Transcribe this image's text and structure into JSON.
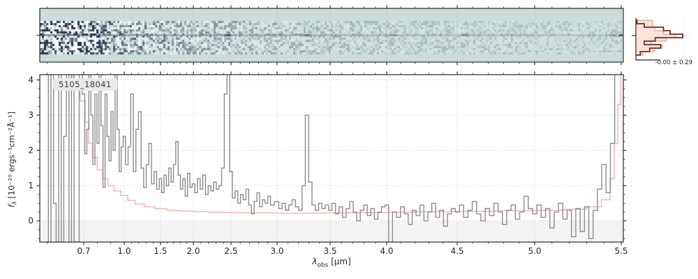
{
  "labels": {
    "source_id": "5105_18041",
    "hist_annotation": "-0.00 ± 0.29",
    "ylabel": {
      "symbol": "f",
      "sub": "λ",
      "unit": " [10⁻²⁰ ergs⁻¹cm⁻²Å⁻¹]"
    },
    "xlabel": {
      "symbol": "λ",
      "sub": "obs",
      "unit": " [μm]"
    }
  },
  "colors": {
    "spectrum_gray": "#8c8c8c",
    "error_pink": "#f5b5b1",
    "hist_line_dark": "#6f2f21",
    "hist_fill": "#fbe3d9",
    "hist_fill_edge": "#eda28f",
    "panel2d_bg": "#cbdcda",
    "noise_dark": "#26334c",
    "grid": "#c9c9c9",
    "grid2d": "#b4bcba",
    "axis": "#262626",
    "below_zero_band": "#f4f4f4",
    "label_box_bg": "#e9e9e9",
    "text": "#262626"
  },
  "chart_data": [
    {
      "type": "heatmap",
      "panel": "2d-spectrum",
      "description": "2D rectified slit spectrum; strong pixel noise at blue end fading redward, dark source trace along the central row with knots near the emission features",
      "x_range_um": [
        0.58,
        5.52
      ],
      "trace_row": "center",
      "line_knot_positions_um": [
        2.45,
        3.28,
        4.05,
        4.55,
        5.45
      ],
      "grid": "dotted-vertical-at-major-ticks"
    },
    {
      "type": "line",
      "panel": "1d-spectrum",
      "title": "",
      "xlabel": "λ_obs [μm]",
      "ylabel": "f_λ [10⁻²⁰ ergs⁻¹cm⁻²Å⁻¹]",
      "xlim": [
        0.58,
        5.52
      ],
      "ylim": [
        -0.6,
        4.15
      ],
      "x_ticks": [
        0.7,
        1.0,
        1.5,
        2.0,
        2.5,
        3.0,
        3.5,
        4.0,
        4.5,
        5.0,
        5.5
      ],
      "x_axis_map": [
        [
          0.58,
          0.0
        ],
        [
          0.7,
          0.0754
        ],
        [
          1.0,
          0.1447
        ],
        [
          1.5,
          0.2069
        ],
        [
          2.0,
          0.2632
        ],
        [
          2.5,
          0.3277
        ],
        [
          3.0,
          0.4067
        ],
        [
          3.5,
          0.4976
        ],
        [
          4.0,
          0.5945
        ],
        [
          4.5,
          0.7153
        ],
        [
          5.0,
          0.8481
        ],
        [
          5.5,
          0.9964
        ],
        [
          5.52,
          1.0
        ]
      ],
      "y_ticks": [
        0,
        1,
        2,
        3,
        4
      ],
      "grid": "dotted",
      "shaded_below_zero": true,
      "series": [
        {
          "name": "observed flux",
          "color_key": "spectrum_gray",
          "style": "steps",
          "segments": [
            {
              "x_start": 0.6,
              "x_step": 0.007,
              "flux": [
                4.2,
                -0.6,
                4.2,
                0.5,
                -0.6,
                4.2,
                -0.6,
                2.4,
                4.2,
                -0.6,
                4.2,
                -0.6,
                -0.6,
                4.2
              ]
            },
            {
              "x_start": 0.7,
              "x_step": 0.015,
              "flux": [
                3.6,
                1.9,
                2.6,
                4.2,
                3.0,
                1.6,
                3.6,
                2.2,
                4.2,
                2.7,
                0.95,
                3.6,
                2.4,
                1.7,
                3.1,
                2.0,
                4.2,
                2.6,
                1.4,
                2.1
              ]
            },
            {
              "x_start": 1.0,
              "x_step": 0.0357,
              "flux": [
                2.4,
                1.6,
                2.1,
                3.6,
                1.4,
                2.6,
                3.1,
                1.5,
                0.95,
                1.6,
                2.2,
                1.05,
                1.4,
                0.9
              ]
            },
            {
              "x_start": 1.5,
              "x_step": 0.0357,
              "flux": [
                1.2,
                0.8,
                1.3,
                1.0,
                1.5,
                1.1,
                1.6,
                2.25,
                1.3,
                0.9,
                1.2,
                0.7,
                1.35,
                0.95
              ]
            },
            {
              "x_start": 2.0,
              "x_step": 0.0357,
              "flux": [
                1.05,
                0.8,
                1.2,
                0.9,
                1.3,
                0.75,
                1.0,
                0.85,
                1.1,
                0.9,
                1.0,
                1.5,
                3.6,
                4.3
              ]
            },
            {
              "x_start": 2.5,
              "x_step": 0.0295,
              "flux": [
                1.4,
                0.65,
                0.85,
                0.5,
                0.75,
                0.6,
                0.9,
                0.45,
                0.2,
                0.55,
                0.8,
                0.4,
                0.6,
                0.5,
                0.7,
                0.45
              ]
            },
            {
              "x_start": 3.0,
              "x_step": 0.0313,
              "flux": [
                0.55,
                0.35,
                0.5,
                0.3,
                0.45,
                0.6,
                0.4,
                0.3,
                1.0,
                3.0,
                1.1,
                0.45,
                0.3,
                0.5,
                0.35,
                0.45
              ]
            },
            {
              "x_start": 3.5,
              "x_step": 0.0313,
              "flux": [
                0.3,
                0.5,
                0.2,
                0.4,
                0.1,
                0.35,
                0.55,
                0.25,
                0.0,
                0.3,
                0.45,
                0.15,
                0.35,
                0.05,
                0.25,
                0.4
              ]
            },
            {
              "x_start": 4.0,
              "x_step": 0.0278,
              "flux": [
                0.45,
                -0.7,
                0.25,
                0.1,
                0.4,
                0.2,
                -0.1,
                0.3,
                0.15,
                0.45,
                0.0,
                0.25,
                0.5,
                0.1,
                0.3,
                -0.15,
                0.2,
                0.35
              ]
            },
            {
              "x_start": 4.5,
              "x_step": 0.0278,
              "flux": [
                0.25,
                0.45,
                0.1,
                0.3,
                0.55,
                0.2,
                0.0,
                0.35,
                0.15,
                0.5,
                0.25,
                -0.1,
                0.3,
                0.45,
                0.05,
                0.25,
                0.7,
                0.35
              ]
            },
            {
              "x_start": 5.0,
              "x_step": 0.025,
              "flux": [
                0.2,
                0.45,
                0.1,
                0.35,
                -0.2,
                0.25,
                0.5,
                0.05,
                0.3,
                -0.45,
                0.35,
                -0.3,
                0.4,
                -0.5,
                0.3,
                0.9,
                1.6,
                0.8,
                2.2,
                4.3
              ]
            }
          ]
        },
        {
          "name": "flux uncertainty",
          "color_key": "error_pink",
          "style": "steps",
          "points": [
            [
              0.6,
              4.3
            ],
            [
              0.66,
              4.3
            ],
            [
              0.68,
              4.0
            ],
            [
              0.7,
              3.4
            ],
            [
              0.72,
              2.8
            ],
            [
              0.75,
              2.2
            ],
            [
              0.78,
              1.8
            ],
            [
              0.82,
              1.45
            ],
            [
              0.86,
              1.2
            ],
            [
              0.9,
              1.0
            ],
            [
              0.95,
              0.85
            ],
            [
              1.0,
              0.72
            ],
            [
              1.1,
              0.58
            ],
            [
              1.2,
              0.48
            ],
            [
              1.35,
              0.4
            ],
            [
              1.5,
              0.35
            ],
            [
              1.7,
              0.3
            ],
            [
              1.9,
              0.28
            ],
            [
              2.1,
              0.26
            ],
            [
              2.3,
              0.25
            ],
            [
              2.5,
              0.24
            ],
            [
              2.7,
              0.23
            ],
            [
              2.9,
              0.225
            ],
            [
              3.1,
              0.22
            ],
            [
              3.3,
              0.22
            ],
            [
              3.6,
              0.23
            ],
            [
              3.9,
              0.235
            ],
            [
              4.1,
              0.245
            ],
            [
              4.3,
              0.26
            ],
            [
              4.6,
              0.27
            ],
            [
              4.9,
              0.29
            ],
            [
              5.1,
              0.3
            ],
            [
              5.25,
              0.33
            ],
            [
              5.35,
              0.4
            ],
            [
              5.42,
              0.6
            ],
            [
              5.45,
              1.2
            ],
            [
              5.47,
              2.2
            ],
            [
              5.49,
              3.3
            ],
            [
              5.505,
              4.3
            ]
          ]
        }
      ]
    },
    {
      "type": "histogram-horizontal",
      "panel": "pixel-distribution",
      "annotation": "-0.00 ± 0.29",
      "orientation": "horizontal",
      "bins_top_to_bottom": 10,
      "series": [
        {
          "name": "pixel distribution (filled)",
          "color_key": "hist_fill",
          "values": [
            0.3,
            0.3,
            0.34,
            0.5,
            0.72,
            0.55,
            0.28,
            0.48,
            0.33,
            0.12
          ]
        },
        {
          "name": "distribution outline",
          "color_key": "hist_line_dark",
          "values": [
            0.02,
            0.15,
            0.5,
            0.62,
            0.85,
            0.35,
            0.15,
            0.45,
            0.25,
            0.08
          ]
        }
      ]
    }
  ]
}
